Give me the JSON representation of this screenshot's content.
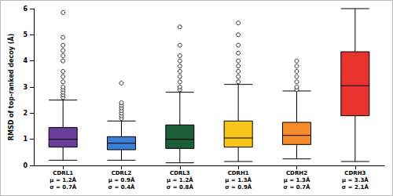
{
  "chart_data": {
    "type": "boxplot",
    "y_label": "RMSD of top-ranked decoy (Å)",
    "categories": [
      "CDRL1\nμ = 1.2Å\nσ = 0.7Å",
      "CDRL2\nμ = 0.9Å\nσ = 0.4Å",
      "CDRL3\nμ = 1.2Å\nσ = 0.8Å",
      "CDRH1\nμ = 1.3Å\nσ = 0.9Å",
      "CDRH2\nμ = 1.3Å\nσ = 0.7Å",
      "CDRH3\nμ = 3.3Å\nσ = 2.1Å"
    ],
    "boxes": [
      [
        0.2,
        0.7,
        1.0,
        1.45,
        2.5
      ],
      [
        0.2,
        0.6,
        0.85,
        1.1,
        1.7
      ],
      [
        0.1,
        0.65,
        1.0,
        1.55,
        2.8
      ],
      [
        0.15,
        0.7,
        1.05,
        1.7,
        3.1
      ],
      [
        0.25,
        0.8,
        1.15,
        1.65,
        2.85
      ],
      [
        0.15,
        1.9,
        3.05,
        4.35,
        6.0
      ]
    ],
    "outliers": [
      [
        2.6,
        2.7,
        2.8,
        2.9,
        3.0,
        3.2,
        3.4,
        3.6,
        4.0,
        4.2,
        4.4,
        4.6,
        4.9,
        5.85
      ],
      [
        1.8,
        1.9,
        2.0,
        2.1,
        2.2,
        2.3,
        2.4,
        3.15
      ],
      [
        2.9,
        3.0,
        3.2,
        3.4,
        3.6,
        3.8,
        4.0,
        4.2,
        4.6,
        5.3
      ],
      [
        3.2,
        3.4,
        3.6,
        3.8,
        4.0,
        4.3,
        4.6,
        5.0,
        5.45
      ],
      [
        2.9,
        3.0,
        3.2,
        3.4,
        3.6,
        3.8,
        4.0
      ],
      []
    ],
    "colors": [
      "#6a3d9a",
      "#3a7fd5",
      "#1b5e37",
      "#f5c518",
      "#f58a2a",
      "#e8322d"
    ],
    "ylim": [
      0,
      6
    ],
    "yticks": [
      0,
      1,
      2,
      3,
      4,
      5,
      6
    ],
    "grid": false
  }
}
